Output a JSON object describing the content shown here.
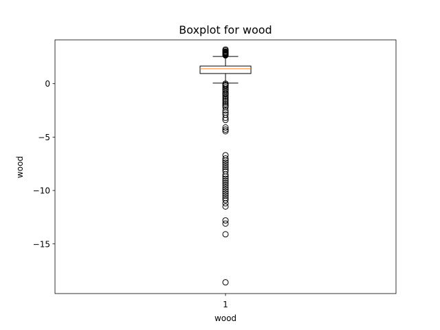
{
  "chart_data": {
    "type": "box",
    "title": "Boxplot for wood",
    "xlabel": "wood",
    "ylabel": "wood",
    "xticks": [
      "1"
    ],
    "yticks": [
      0,
      -5,
      -10,
      -15
    ],
    "ylim": [
      -19.65,
      4.1
    ],
    "grid": false,
    "series": [
      {
        "category": "1",
        "q1": 0.95,
        "median": 1.4,
        "q3": 1.65,
        "whisker_low": 0.05,
        "whisker_high": 2.55,
        "outliers": [
          3.2,
          3.1,
          3.0,
          2.95,
          2.9,
          2.85,
          2.8,
          2.75,
          2.7,
          2.65,
          0.0,
          -0.1,
          -0.2,
          -0.35,
          -0.5,
          -0.6,
          -0.75,
          -0.9,
          -1.0,
          -1.15,
          -1.3,
          -1.45,
          -1.6,
          -1.75,
          -1.9,
          -2.05,
          -2.2,
          -2.5,
          -2.7,
          -2.9,
          -3.2,
          -3.4,
          -4.1,
          -4.3,
          -4.45,
          -6.7,
          -7.0,
          -7.2,
          -7.4,
          -7.6,
          -7.8,
          -8.0,
          -8.2,
          -8.5,
          -8.7,
          -8.9,
          -9.1,
          -9.3,
          -9.5,
          -9.7,
          -9.9,
          -10.1,
          -10.3,
          -10.5,
          -10.7,
          -10.9,
          -11.2,
          -11.5,
          -12.8,
          -13.1,
          -14.1,
          -18.6
        ]
      }
    ],
    "colors": {
      "median": "#ff7f0e",
      "box": "#000000"
    }
  }
}
